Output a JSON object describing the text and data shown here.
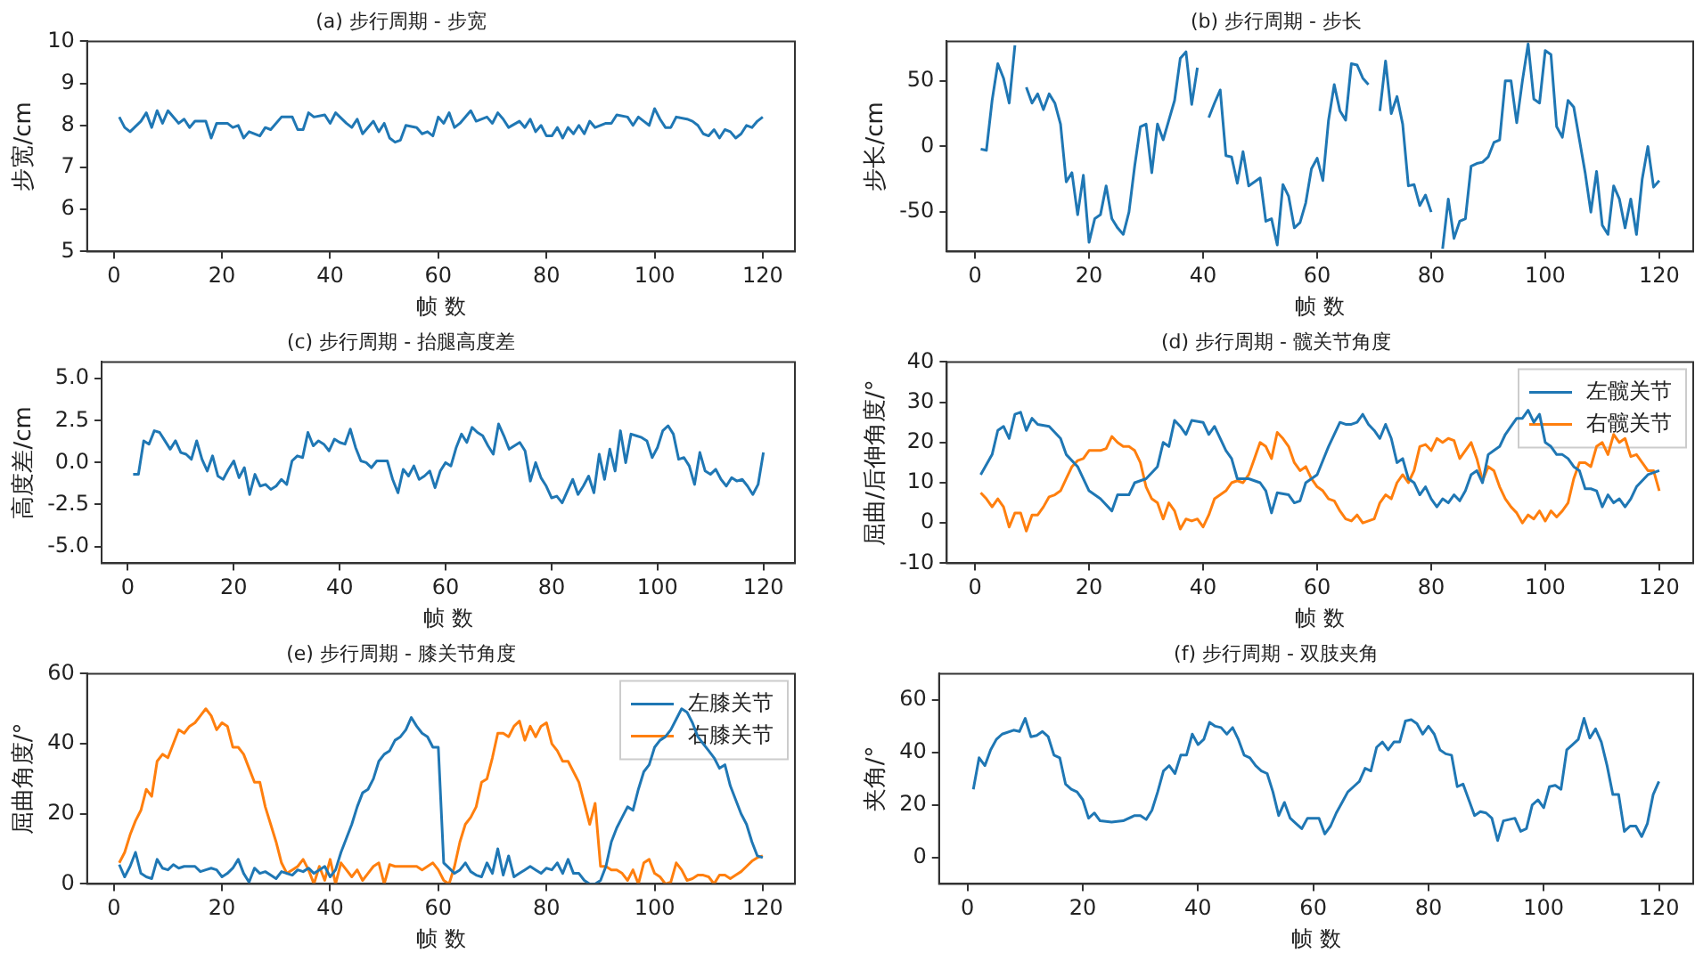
{
  "chart_data": [
    {
      "type": "line",
      "title": "(a) 步行周期 - 步宽",
      "xlabel": "帧 数",
      "ylabel": "步宽/cm",
      "xlim": [
        -4.95,
        125.95
      ],
      "xticks": [
        0,
        20,
        40,
        60,
        80,
        100,
        120
      ],
      "ylim": [
        5,
        10
      ],
      "yticks": [
        5,
        6,
        7,
        8,
        9,
        10
      ],
      "legend": false,
      "series": [
        {
          "color": "#1f77b4",
          "x": [
            1,
            2,
            3,
            5,
            6,
            7,
            8,
            9,
            10,
            12,
            13,
            14,
            15,
            17,
            18,
            19,
            21,
            22,
            23,
            24,
            25,
            27,
            28,
            29,
            31,
            33,
            34,
            35,
            36,
            37,
            39,
            40,
            41,
            43,
            44,
            45,
            46,
            48,
            49,
            50,
            51,
            52,
            53,
            54,
            56,
            57,
            58,
            59,
            60,
            61,
            62,
            63,
            64,
            66,
            67,
            69,
            70,
            71,
            72,
            73,
            75,
            76,
            77,
            78,
            79,
            80,
            81,
            82,
            83,
            84,
            85,
            86,
            87,
            88,
            89,
            91,
            92,
            93,
            95,
            96,
            97,
            98,
            99,
            100,
            101,
            102,
            103,
            104,
            106,
            107,
            108,
            109,
            110,
            111,
            112,
            113,
            114,
            115,
            116,
            117,
            118,
            119,
            120
          ],
          "values": [
            8.2,
            7.95,
            7.85,
            8.1,
            8.3,
            7.95,
            8.35,
            8.05,
            8.35,
            8.05,
            8.15,
            7.95,
            8.1,
            8.1,
            7.7,
            8.05,
            8.05,
            7.95,
            8.0,
            7.7,
            7.85,
            7.75,
            7.95,
            7.9,
            8.2,
            8.2,
            7.9,
            7.9,
            8.3,
            8.2,
            8.25,
            8.05,
            8.3,
            8.05,
            7.95,
            8.15,
            7.8,
            8.1,
            7.85,
            8.05,
            7.7,
            7.6,
            7.65,
            8.0,
            7.95,
            7.8,
            7.85,
            7.75,
            8.2,
            8.05,
            8.3,
            7.95,
            8.05,
            8.35,
            8.1,
            8.2,
            8.05,
            8.3,
            8.15,
            7.95,
            8.1,
            7.95,
            8.15,
            7.85,
            8.0,
            7.75,
            7.75,
            7.95,
            7.7,
            7.95,
            7.8,
            8.0,
            7.8,
            8.1,
            7.95,
            8.05,
            8.05,
            8.25,
            8.2,
            8.0,
            8.2,
            8.1,
            8.0,
            8.4,
            8.15,
            7.95,
            7.95,
            8.2,
            8.15,
            8.1,
            8.0,
            7.8,
            7.75,
            7.9,
            7.7,
            7.9,
            7.85,
            7.7,
            7.8,
            8.0,
            7.95,
            8.1,
            8.2
          ]
        }
      ]
    },
    {
      "type": "line",
      "title": "(b) 步行周期 - 步长",
      "xlabel": "帧 数",
      "ylabel": "步长/cm",
      "xlim": [
        -4.95,
        125.95
      ],
      "xticks": [
        0,
        20,
        40,
        60,
        80,
        100,
        120
      ],
      "ylim": [
        -80,
        80
      ],
      "yticks": [
        -50,
        0,
        50
      ],
      "legend": false,
      "series": [
        {
          "color": "#1f77b4",
          "x": [
            1,
            2,
            3,
            4,
            5,
            6,
            7,
            8,
            9,
            10,
            11,
            12,
            13,
            14,
            15,
            16,
            17,
            18,
            19,
            20,
            21,
            22,
            23,
            24,
            25,
            26,
            27,
            28,
            29,
            30,
            31,
            32,
            33,
            34,
            35,
            36,
            37,
            38,
            39,
            40,
            41,
            42,
            43,
            44,
            45,
            46,
            47,
            48,
            49,
            50,
            51,
            52,
            53,
            54,
            55,
            56,
            57,
            58,
            59,
            60,
            61,
            62,
            63,
            64,
            65,
            66,
            67,
            68,
            69,
            70,
            71,
            72,
            73,
            74,
            75,
            76,
            77,
            78,
            79,
            80,
            81,
            82,
            83,
            84,
            85,
            86,
            87,
            88,
            89,
            90,
            91,
            92,
            93,
            94,
            95,
            96,
            97,
            98,
            99,
            100,
            101,
            102,
            103,
            104,
            105,
            106,
            107,
            108,
            109,
            110,
            111,
            112,
            113,
            114,
            115,
            116,
            117,
            118,
            119,
            120
          ],
          "values": [
            -2,
            -3,
            35,
            63,
            52,
            33,
            77,
            null,
            45,
            33,
            40,
            28,
            40,
            33,
            17,
            -27,
            -20,
            -52,
            -22,
            -73,
            -55,
            -52,
            -30,
            -55,
            -62,
            -67,
            -50,
            -15,
            15,
            17,
            -20,
            17,
            5,
            20,
            35,
            67,
            72,
            32,
            60,
            null,
            22,
            33,
            43,
            -7,
            -8,
            -28,
            -4,
            -30,
            -27,
            -24,
            -57,
            -55,
            -75,
            -29,
            -38,
            -62,
            -58,
            -43,
            -17,
            -9,
            -26,
            20,
            47,
            27,
            20,
            63,
            62,
            52,
            47,
            null,
            27,
            65,
            25,
            38,
            17,
            -30,
            -29,
            -45,
            -37,
            -50,
            null,
            -78,
            -40,
            -70,
            -57,
            -55,
            -15,
            -13,
            -12,
            -8,
            3,
            5,
            50,
            50,
            18,
            50,
            78,
            36,
            33,
            73,
            70,
            15,
            7,
            35,
            30,
            5,
            -20,
            -50,
            -19,
            -60,
            -67,
            -30,
            -40,
            -62,
            -40,
            -67,
            -25,
            0,
            -31,
            -26
          ]
        }
      ]
    },
    {
      "type": "line",
      "title": "(c) 步行周期 - 抬腿高度差",
      "xlabel": "帧 数",
      "ylabel": "高度差/cm",
      "xlim": [
        -4.95,
        125.95
      ],
      "xticks": [
        0,
        20,
        40,
        60,
        80,
        100,
        120
      ],
      "ylim": [
        -6,
        6
      ],
      "yticks": [
        {
          "value": -5,
          "label": "-5.0"
        },
        {
          "value": -2.5,
          "label": "-2.5"
        },
        {
          "value": 0,
          "label": "0.0"
        },
        {
          "value": 2.5,
          "label": "2.5"
        },
        {
          "value": 5,
          "label": "5.0"
        }
      ],
      "legend": false,
      "series": [
        {
          "color": "#1f77b4",
          "x": [
            1,
            2,
            3,
            4,
            5,
            6,
            7,
            8,
            9,
            10,
            11,
            12,
            13,
            14,
            15,
            16,
            17,
            18,
            19,
            20,
            21,
            22,
            23,
            24,
            25,
            26,
            27,
            28,
            29,
            30,
            31,
            32,
            33,
            34,
            35,
            36,
            37,
            38,
            39,
            40,
            41,
            42,
            43,
            44,
            45,
            46,
            47,
            48,
            49,
            50,
            51,
            52,
            53,
            54,
            55,
            56,
            57,
            58,
            59,
            60,
            61,
            62,
            63,
            64,
            65,
            66,
            67,
            68,
            69,
            70,
            71,
            72,
            73,
            74,
            75,
            76,
            77,
            78,
            79,
            80,
            81,
            82,
            83,
            84,
            85,
            86,
            87,
            88,
            89,
            90,
            91,
            92,
            93,
            94,
            95,
            96,
            97,
            98,
            99,
            100,
            101,
            102,
            103,
            104,
            105,
            106,
            107,
            108,
            109,
            110,
            111,
            112,
            113,
            114,
            115,
            116,
            117,
            118,
            119,
            120
          ],
          "values": [
            -0.7,
            -0.7,
            1.3,
            1.1,
            1.9,
            1.8,
            1.3,
            0.8,
            1.3,
            0.6,
            0.5,
            0.2,
            1.3,
            0.2,
            -0.5,
            0.4,
            -0.8,
            -1.0,
            -0.4,
            0.1,
            -0.9,
            -0.3,
            -1.9,
            -0.7,
            -1.4,
            -1.3,
            -1.6,
            -1.4,
            -1.0,
            -1.3,
            0.1,
            0.4,
            0.3,
            1.8,
            1.0,
            1.3,
            1.1,
            0.7,
            1.4,
            1.2,
            1.1,
            2.0,
            0.9,
            0.1,
            0.0,
            -0.3,
            0.1,
            0.1,
            0.1,
            -1.0,
            -1.8,
            -0.4,
            -0.8,
            -0.2,
            -1.0,
            -0.8,
            -0.5,
            -1.5,
            -0.5,
            0.0,
            -0.2,
            0.9,
            1.7,
            1.2,
            2.1,
            1.8,
            1.6,
            1.0,
            0.5,
            2.3,
            1.6,
            0.8,
            1.0,
            1.2,
            0.7,
            -1.1,
            0.0,
            -0.9,
            -1.4,
            -2.1,
            -2.0,
            -2.4,
            -1.7,
            -1.0,
            -1.9,
            -1.4,
            -0.8,
            -1.8,
            0.5,
            -1.0,
            0.8,
            -0.5,
            1.9,
            0.0,
            1.7,
            1.6,
            1.5,
            1.3,
            0.3,
            0.9,
            1.9,
            2.2,
            1.7,
            0.2,
            0.3,
            -0.2,
            -1.3,
            0.6,
            -0.5,
            -0.7,
            -0.4,
            -1.0,
            -1.4,
            -0.9,
            -1.1,
            -1.0,
            -1.4,
            -1.9,
            -1.3,
            0.6
          ]
        }
      ]
    },
    {
      "type": "line",
      "title": "(d) 步行周期 - 髋关节角度",
      "xlabel": "帧 数",
      "ylabel": "屈曲/后伸角度/°",
      "xlim": [
        -4.95,
        125.95
      ],
      "xticks": [
        0,
        20,
        40,
        60,
        80,
        100,
        120
      ],
      "ylim": [
        -10,
        40
      ],
      "yticks": [
        -10,
        0,
        10,
        20,
        30,
        40
      ],
      "legend": "top right",
      "series": [
        {
          "name": "左髋关节",
          "color": "#1f77b4",
          "x": [
            1,
            3,
            4,
            5,
            6,
            7,
            8,
            9,
            10,
            11,
            13,
            15,
            16,
            18,
            20,
            22,
            24,
            25,
            27,
            28,
            30,
            32,
            33,
            34,
            35,
            36,
            37,
            38,
            40,
            41,
            42,
            44,
            45,
            46,
            48,
            50,
            51,
            52,
            53,
            55,
            56,
            57,
            58,
            60,
            62,
            64,
            65,
            66,
            67,
            68,
            69,
            70,
            71,
            72,
            73,
            74,
            75,
            76,
            77,
            78,
            79,
            80,
            81,
            82,
            83,
            84,
            85,
            86,
            87,
            88,
            89,
            90,
            91,
            92,
            93,
            94,
            95,
            96,
            97,
            98,
            99,
            100,
            101,
            102,
            103,
            104,
            105,
            106,
            107,
            108,
            109,
            110,
            111,
            112,
            113,
            114,
            115,
            116,
            118,
            120
          ],
          "values": [
            12,
            17,
            23,
            24,
            21,
            27,
            27.5,
            23,
            26,
            24.5,
            24,
            21,
            17,
            14,
            8,
            6,
            3,
            7,
            7,
            10,
            11,
            14,
            20,
            19,
            25.5,
            24,
            22,
            25.5,
            25,
            22,
            24,
            18,
            16,
            11,
            11,
            10,
            8,
            2.5,
            7.5,
            7,
            5,
            5.5,
            10,
            12,
            19,
            25,
            24.5,
            24.5,
            25,
            27,
            24.5,
            23,
            21,
            24.5,
            21,
            15,
            16,
            11,
            10,
            7,
            9,
            6,
            4,
            6,
            5,
            7,
            5.5,
            8,
            12,
            13,
            10,
            17,
            18,
            19,
            22,
            24,
            26,
            26,
            28,
            25,
            27,
            20,
            19,
            17,
            17,
            16,
            14,
            13,
            8.5,
            8.5,
            8,
            4,
            7,
            5,
            6,
            4,
            6,
            9,
            12,
            13
          ]
        },
        {
          "name": "右髋关节",
          "color": "#ff7f0e",
          "x": [
            1,
            2,
            3,
            4,
            5,
            6,
            7,
            8,
            9,
            10,
            11,
            12,
            13,
            14,
            15,
            16,
            17,
            18,
            19,
            20,
            21,
            22,
            23,
            24,
            25,
            26,
            27,
            28,
            29,
            30,
            31,
            32,
            33,
            34,
            35,
            36,
            37,
            38,
            39,
            40,
            41,
            42,
            43,
            44,
            45,
            46,
            47,
            48,
            49,
            50,
            51,
            52,
            53,
            54,
            55,
            56,
            57,
            58,
            59,
            60,
            61,
            62,
            63,
            64,
            65,
            66,
            67,
            68,
            69,
            70,
            71,
            72,
            73,
            74,
            75,
            76,
            77,
            78,
            79,
            80,
            81,
            82,
            83,
            84,
            85,
            86,
            87,
            88,
            89,
            90,
            91,
            92,
            93,
            94,
            95,
            96,
            97,
            98,
            99,
            100,
            101,
            102,
            103,
            104,
            105,
            106,
            107,
            108,
            109,
            110,
            111,
            112,
            113,
            114,
            115,
            116,
            117,
            118,
            119,
            120
          ],
          "values": [
            7.5,
            6,
            4,
            6,
            4,
            -1,
            2.5,
            2.5,
            -2,
            2,
            2,
            4,
            6.5,
            7,
            8,
            11,
            14,
            15.5,
            16,
            18,
            18,
            18,
            18.5,
            21.5,
            20,
            19,
            19,
            18,
            15,
            9,
            6,
            5,
            1,
            5,
            3,
            -1.5,
            1,
            0.5,
            1,
            -1,
            2,
            6,
            7,
            8,
            10,
            10.5,
            10,
            12,
            16,
            20,
            19,
            16,
            22.5,
            21,
            19,
            15,
            13,
            14,
            11,
            9,
            8,
            6,
            5.5,
            3,
            1,
            0.5,
            2,
            0,
            0.5,
            1,
            5,
            7,
            6,
            10,
            12,
            10,
            13,
            19,
            19.5,
            18,
            21,
            20,
            21,
            20.5,
            16,
            18,
            20,
            16,
            10.5,
            14,
            13,
            9,
            6,
            4,
            2.5,
            0,
            2,
            1,
            3,
            0.5,
            3,
            1.5,
            3,
            5,
            11,
            15,
            15,
            14,
            19,
            20,
            17,
            22,
            20,
            21,
            16.5,
            17,
            15,
            13,
            13,
            8
          ]
        }
      ]
    },
    {
      "type": "line",
      "title": "(e) 步行周期 - 膝关节角度",
      "xlabel": "帧 数",
      "ylabel": "屈曲角度/°",
      "xlim": [
        -4.95,
        125.95
      ],
      "xticks": [
        0,
        20,
        40,
        60,
        80,
        100,
        120
      ],
      "ylim": [
        0,
        60
      ],
      "yticks": [
        0,
        20,
        40,
        60
      ],
      "legend": "top right",
      "series": [
        {
          "name": "左膝关节",
          "color": "#1f77b4",
          "x": [
            1,
            2,
            3,
            4,
            5,
            6,
            7,
            8,
            9,
            10,
            11,
            12,
            13,
            14,
            15,
            16,
            17,
            18,
            19,
            20,
            21,
            22,
            23,
            24,
            25,
            26,
            27,
            28,
            29,
            30,
            31,
            32,
            33,
            34,
            35,
            36,
            37,
            38,
            39,
            40,
            41,
            42,
            43,
            44,
            45,
            46,
            47,
            48,
            49,
            50,
            51,
            52,
            53,
            54,
            55,
            56,
            57,
            58,
            59,
            60,
            61,
            62,
            63,
            64,
            65,
            66,
            67,
            68,
            69,
            70,
            71,
            72,
            73,
            74,
            75,
            76,
            77,
            78,
            79,
            80,
            81,
            82,
            83,
            84,
            85,
            86,
            87,
            88,
            89,
            90,
            91,
            92,
            93,
            94,
            95,
            96,
            97,
            98,
            99,
            100,
            101,
            102,
            103,
            104,
            105,
            106,
            107,
            108,
            109,
            110,
            111,
            112,
            113,
            114,
            115,
            116,
            117,
            118,
            119,
            120
          ],
          "values": [
            5.5,
            2,
            5,
            9,
            3,
            2,
            1.5,
            7,
            4.5,
            4,
            5.5,
            4.5,
            5,
            5,
            5,
            3.5,
            4,
            4.5,
            4,
            2,
            3,
            4.5,
            7,
            3,
            0.5,
            4.5,
            3,
            3.5,
            2.5,
            1.5,
            3.5,
            3,
            2.5,
            4,
            3.5,
            4.5,
            3,
            4,
            5,
            2,
            4,
            9,
            13,
            17,
            22,
            26,
            27,
            30,
            35,
            37,
            38,
            41,
            42,
            44,
            47.5,
            45,
            43,
            42,
            39,
            39,
            6,
            4.5,
            3,
            4,
            6,
            3.5,
            2.5,
            2,
            6,
            3,
            10,
            2.5,
            8,
            2,
            3,
            4,
            5,
            4,
            3,
            4.5,
            4,
            6,
            3,
            7,
            3,
            3,
            1,
            0,
            0,
            1,
            5,
            12,
            16,
            19,
            22,
            21,
            27,
            32,
            34,
            39,
            41,
            42,
            44,
            47,
            50,
            49,
            46,
            42,
            40,
            38,
            36,
            33,
            34,
            28,
            24,
            20,
            17,
            12,
            8,
            7.5
          ]
        },
        {
          "name": "右膝关节",
          "color": "#ff7f0e",
          "x": [
            1,
            2,
            3,
            4,
            5,
            6,
            7,
            8,
            9,
            10,
            11,
            12,
            13,
            14,
            15,
            16,
            17,
            18,
            19,
            20,
            21,
            22,
            23,
            24,
            25,
            26,
            27,
            28,
            29,
            30,
            31,
            32,
            33,
            34,
            35,
            36,
            37,
            38,
            39,
            40,
            41,
            42,
            43,
            44,
            45,
            46,
            47,
            48,
            49,
            50,
            51,
            52,
            53,
            54,
            55,
            56,
            57,
            58,
            59,
            60,
            61,
            62,
            63,
            64,
            65,
            66,
            67,
            68,
            69,
            70,
            71,
            72,
            73,
            74,
            75,
            76,
            77,
            78,
            79,
            80,
            81,
            82,
            83,
            84,
            85,
            86,
            87,
            88,
            89,
            90,
            91,
            92,
            93,
            94,
            95,
            96,
            97,
            98,
            99,
            100,
            101,
            102,
            103,
            104,
            105,
            106,
            107,
            108,
            109,
            110,
            111,
            112,
            113,
            114,
            115,
            116,
            117,
            118,
            119,
            120
          ],
          "values": [
            6,
            9,
            14,
            18,
            21,
            27,
            25,
            35,
            37,
            36,
            40,
            44,
            43,
            45,
            46,
            48,
            50,
            48,
            44,
            46,
            45,
            39,
            39,
            37,
            33,
            29,
            29,
            22,
            17,
            12,
            6,
            3,
            4,
            5,
            7,
            4,
            0,
            5,
            1,
            7,
            0,
            6,
            4,
            2,
            4,
            1,
            3,
            5,
            6,
            0,
            5.5,
            5,
            5,
            5,
            5,
            5,
            4,
            5,
            6,
            4,
            1,
            0,
            5,
            12,
            17,
            19,
            22,
            29,
            30,
            36,
            43,
            43,
            42,
            45,
            46.5,
            41,
            45,
            42,
            45,
            46,
            40,
            38,
            35,
            35,
            32,
            29,
            23,
            17,
            23,
            5,
            5,
            4,
            4,
            3,
            1,
            4,
            0,
            6,
            7,
            3,
            2,
            0,
            0.5,
            6,
            4,
            1,
            1.5,
            2.5,
            2.5,
            2,
            0,
            2.5,
            2.5,
            1.5,
            2.5,
            3.5,
            5,
            6.5,
            7.5,
            8
          ]
        }
      ]
    },
    {
      "type": "line",
      "title": "(f) 步行周期 - 双肢夹角",
      "xlabel": "帧 数",
      "ylabel": "夹角/°",
      "xlim": [
        -4.95,
        125.95
      ],
      "xticks": [
        0,
        20,
        40,
        60,
        80,
        100,
        120
      ],
      "ylim": [
        -10,
        70
      ],
      "yticks": [
        0,
        20,
        40,
        60
      ],
      "legend": false,
      "series": [
        {
          "color": "#1f77b4",
          "x": [
            1,
            2,
            3,
            4,
            5,
            6,
            8,
            9,
            10,
            11,
            12,
            13,
            14,
            15,
            16,
            17,
            18,
            19,
            20,
            21,
            22,
            23,
            25,
            27,
            29,
            30,
            31,
            32,
            33,
            34,
            35,
            36,
            37,
            38,
            39,
            40,
            41,
            42,
            43,
            44,
            45,
            46,
            47,
            48,
            49,
            50,
            51,
            52,
            53,
            54,
            55,
            56,
            57,
            58,
            59,
            60,
            61,
            62,
            63,
            64,
            65,
            66,
            67,
            68,
            69,
            70,
            71,
            72,
            73,
            74,
            75,
            76,
            77,
            78,
            79,
            80,
            81,
            82,
            83,
            84,
            85,
            86,
            87,
            88,
            89,
            90,
            91,
            92,
            93,
            94,
            95,
            96,
            97,
            98,
            99,
            100,
            101,
            102,
            103,
            104,
            105,
            106,
            107,
            108,
            109,
            110,
            111,
            112,
            113,
            114,
            115,
            116,
            117,
            118,
            119,
            120
          ],
          "values": [
            26,
            38,
            35,
            41,
            45,
            47,
            48.5,
            48,
            53,
            46,
            46.5,
            48,
            46,
            39,
            38,
            28,
            26,
            25,
            22,
            15,
            17,
            14,
            13.5,
            14,
            16,
            16,
            14.5,
            18,
            25,
            33,
            35,
            32,
            39,
            39,
            47,
            43,
            45,
            51.5,
            50,
            49.5,
            47,
            49.5,
            45,
            39,
            38,
            35,
            33,
            32,
            25,
            16,
            21,
            15,
            13,
            11,
            15,
            15,
            15,
            9,
            12,
            17,
            21,
            25,
            27,
            29,
            34,
            33,
            42,
            44,
            41,
            44,
            44,
            52,
            52.5,
            51,
            47,
            50,
            47,
            41,
            39.5,
            39,
            27,
            28,
            22,
            16,
            17.5,
            17,
            15,
            6.5,
            14,
            14.5,
            15,
            10,
            11,
            20,
            22,
            19,
            27,
            27.5,
            26,
            41,
            43,
            45,
            53,
            45.5,
            49,
            44,
            35,
            24,
            24,
            10,
            12,
            12,
            8,
            13,
            24,
            29
          ]
        }
      ]
    }
  ]
}
